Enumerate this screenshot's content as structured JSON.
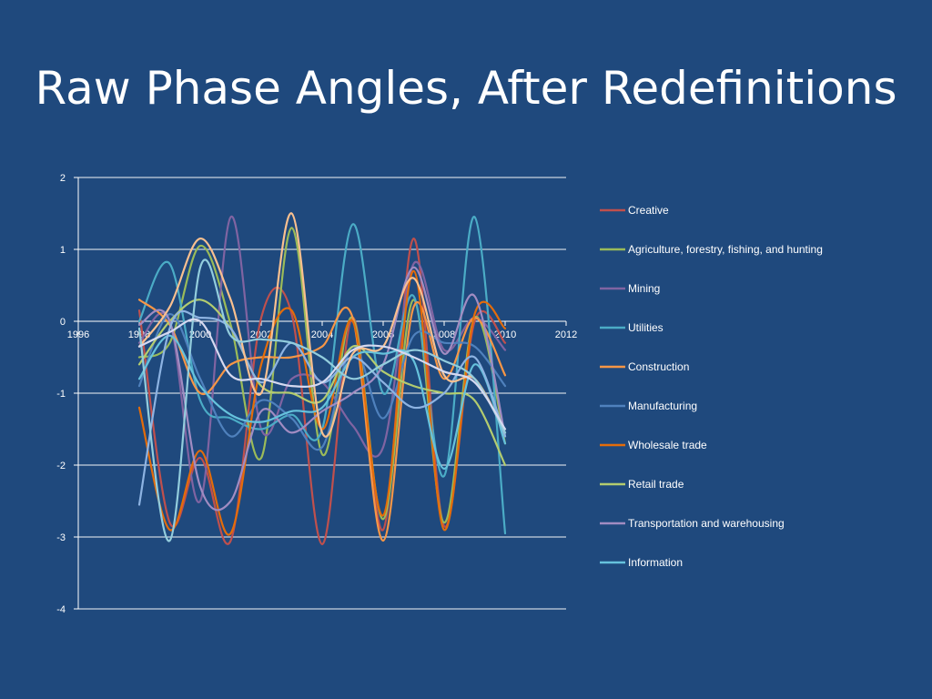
{
  "slide": {
    "title": "Raw Phase Angles, After Redefinitions"
  },
  "chart_data": {
    "type": "line",
    "title": "",
    "xlabel": "",
    "ylabel": "",
    "xlim": [
      1996,
      2012
    ],
    "ylim": [
      -4,
      2
    ],
    "xticks": [
      1996,
      1998,
      2000,
      2002,
      2004,
      2006,
      2008,
      2010,
      2012
    ],
    "yticks": [
      2,
      1,
      0,
      -1,
      -2,
      -3,
      -4
    ],
    "grid": "horizontal",
    "legend_position": "right",
    "smooth": true,
    "x": [
      1998,
      1999,
      2000,
      2001,
      2002,
      2003,
      2004,
      2005,
      2006,
      2007,
      2008,
      2009,
      2010
    ],
    "series": [
      {
        "name": "Creative",
        "color": "#c0504d",
        "values": [
          0.15,
          -2.8,
          -1.9,
          -3.05,
          0.05,
          0.1,
          -3.1,
          0.05,
          -2.9,
          1.15,
          -2.85,
          0.0,
          -0.3
        ]
      },
      {
        "name": "Agriculture, forestry, fishing, and hunting",
        "color": "#9bbb59",
        "values": [
          -0.5,
          -0.3,
          1.05,
          -0.05,
          -1.9,
          1.3,
          -1.85,
          0.05,
          -2.75,
          0.3,
          -2.8,
          0.05,
          -1.7
        ]
      },
      {
        "name": "Mining",
        "color": "#8064a2",
        "values": [
          -0.3,
          0.0,
          -2.5,
          1.45,
          -1.5,
          -0.8,
          -0.85,
          -1.45,
          -1.75,
          0.8,
          -0.4,
          0.05,
          -0.4
        ]
      },
      {
        "name": "Utilities",
        "color": "#4bacc6",
        "values": [
          0.0,
          0.8,
          -1.1,
          -1.35,
          -1.5,
          -1.3,
          -1.5,
          1.35,
          -1.0,
          0.35,
          -2.15,
          1.45,
          -2.95
        ]
      },
      {
        "name": "Construction",
        "color": "#f79646",
        "values": [
          0.3,
          -0.05,
          -1.0,
          -0.6,
          -0.5,
          -0.5,
          -0.35,
          0.05,
          -3.05,
          0.2,
          -0.8,
          0.05,
          -0.75
        ]
      },
      {
        "name": "Manufacturing",
        "color": "#4f81bd",
        "values": [
          -0.9,
          0.1,
          -0.8,
          -1.6,
          -1.1,
          -1.35,
          -1.75,
          -0.35,
          -1.35,
          -0.2,
          -0.3,
          -0.35,
          -0.9
        ]
      },
      {
        "name": "Wholesale trade",
        "color": "#e46c0a",
        "values": [
          -1.2,
          -2.9,
          -1.8,
          -2.95,
          -0.6,
          0.15,
          -1.5,
          0.0,
          -2.7,
          0.7,
          -2.9,
          0.1,
          -0.1
        ]
      },
      {
        "name": "Retail trade",
        "color": "#b3cc6f",
        "values": [
          -0.6,
          0.0,
          0.3,
          -0.1,
          -0.9,
          -1.0,
          -1.1,
          -0.35,
          -0.7,
          -0.9,
          -1.0,
          -1.1,
          -2.0
        ]
      },
      {
        "name": "Transportation and warehousing",
        "color": "#a18cc2",
        "values": [
          -0.05,
          0.0,
          -2.3,
          -2.5,
          -1.25,
          -1.55,
          -1.25,
          -1.0,
          -0.6,
          0.75,
          -0.45,
          0.35,
          -1.6
        ]
      },
      {
        "name": "Information",
        "color": "#66c2dc",
        "values": [
          -0.8,
          -0.2,
          -0.9,
          -1.3,
          -1.4,
          -1.25,
          -1.2,
          -0.5,
          -0.45,
          -0.55,
          -2.05,
          -0.6,
          -1.7
        ]
      },
      {
        "name": "",
        "color": "#8db3e2",
        "values": [
          -2.55,
          -0.1,
          0.05,
          -0.1,
          -0.85,
          -0.3,
          -0.85,
          -0.5,
          -0.85,
          -1.2,
          -1.0,
          -0.5,
          -1.6
        ]
      },
      {
        "name": "",
        "color": "#fac08f",
        "values": [
          -0.35,
          0.2,
          1.15,
          0.3,
          -1.0,
          1.5,
          -1.55,
          -0.45,
          -0.35,
          0.6,
          -0.75,
          -0.8,
          -1.55
        ]
      },
      {
        "name": "",
        "color": "#93cddd",
        "values": [
          -0.1,
          -3.05,
          0.75,
          -0.2,
          -0.25,
          -0.3,
          -0.5,
          -0.8,
          -0.6,
          -0.4,
          -0.55,
          -0.8,
          -1.55
        ]
      },
      {
        "name": "",
        "color": "#d5d9f0",
        "values": [
          -0.35,
          -0.15,
          0.0,
          -0.75,
          -0.8,
          -0.9,
          -0.85,
          -0.4,
          -0.35,
          -0.5,
          -0.7,
          -0.85,
          -1.5
        ]
      }
    ]
  }
}
